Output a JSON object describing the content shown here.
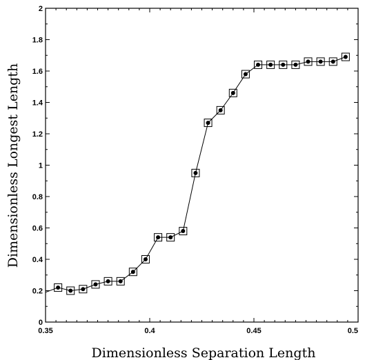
{
  "chart_data": {
    "type": "line",
    "title": "",
    "xlabel": "Dimensionless Separation Length",
    "ylabel": "Dimensionless Longest Length",
    "xlim": [
      0.35,
      0.5
    ],
    "ylim": [
      0,
      2
    ],
    "x_ticks": [
      "0.35",
      "0.4",
      "0.45",
      "0.5"
    ],
    "y_ticks": [
      "0",
      "0.2",
      "0.4",
      "0.6",
      "0.8",
      "1",
      "1.2",
      "1.4",
      "1.6",
      "1.8",
      "2"
    ],
    "grid": false,
    "legend": "none",
    "markers": "open-square-with-filled-dot",
    "series": [
      {
        "x": [
          0.35,
          0.356,
          0.362,
          0.368,
          0.374,
          0.38,
          0.386,
          0.392,
          0.398,
          0.404,
          0.41,
          0.416,
          0.422,
          0.428,
          0.434,
          0.44,
          0.446,
          0.452,
          0.458,
          0.464,
          0.47,
          0.476,
          0.482,
          0.488,
          0.494
        ],
        "y": [
          0.19,
          0.22,
          0.2,
          0.21,
          0.24,
          0.26,
          0.26,
          0.32,
          0.4,
          0.54,
          0.54,
          0.58,
          0.95,
          1.27,
          1.35,
          1.46,
          1.58,
          1.64,
          1.64,
          1.64,
          1.64,
          1.66,
          1.66,
          1.66,
          1.69
        ],
        "marker_start_index": 1
      }
    ]
  }
}
